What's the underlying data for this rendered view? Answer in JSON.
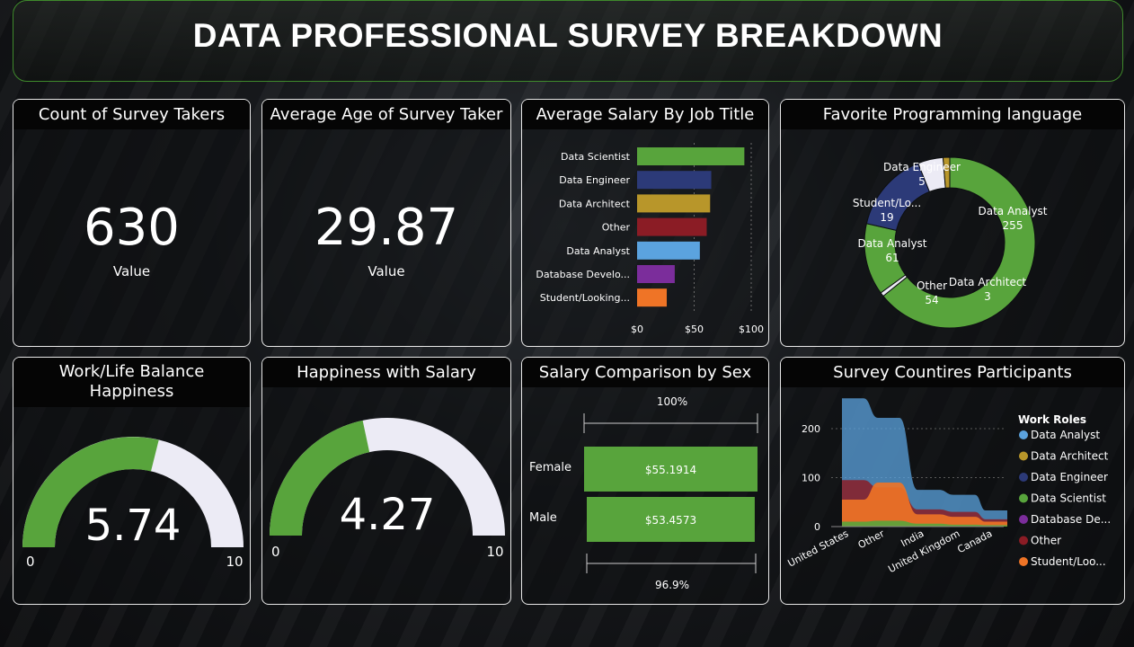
{
  "page_title": "DATA PROFESSIONAL SURVEY BREAKDOWN",
  "colors": {
    "green": "#58a43c",
    "accent_border": "#3f8a2c",
    "gauge_bg": "#ecebf5"
  },
  "kpis": {
    "count": {
      "title": "Count of Survey Takers",
      "value": "630",
      "label": "Value"
    },
    "age": {
      "title": "Average Age of Survey Taker",
      "value": "29.87",
      "label": "Value"
    }
  },
  "gauges": {
    "work_life": {
      "title": "Work/Life Balance Happiness",
      "value_text": "5.74",
      "min_label": "0",
      "max_label": "10"
    },
    "salary_happiness": {
      "title": "Happiness with Salary",
      "value_text": "4.27",
      "min_label": "0",
      "max_label": "10"
    }
  },
  "salary_by_title": {
    "title": "Average Salary By Job Title"
  },
  "languages": {
    "title": "Favorite Programming language"
  },
  "salary_sex": {
    "title": "Salary Comparison by Sex",
    "top_pct": "100%",
    "bottom_pct": "96.9%"
  },
  "countries": {
    "title": "Survey Countires Participants",
    "legend_title": "Work Roles"
  },
  "chart_data": [
    {
      "type": "bar",
      "orientation": "horizontal",
      "title": "Average Salary By Job Title",
      "categories": [
        "Data Scientist",
        "Data Engineer",
        "Data Architect",
        "Other",
        "Data Analyst",
        "Database Develo...",
        "Student/Looking..."
      ],
      "values": [
        94,
        65,
        64,
        61,
        55,
        33,
        26
      ],
      "colors": [
        "#58a43c",
        "#2c3a78",
        "#b8962a",
        "#8b1c25",
        "#5ba3df",
        "#7b2d9b",
        "#ef7426"
      ],
      "xlim": [
        0,
        100
      ],
      "xticks": [
        "$0",
        "$50",
        "$100"
      ],
      "xtick_values": [
        0,
        50,
        100
      ]
    },
    {
      "type": "pie",
      "subtype": "donut",
      "title": "Favorite Programming language",
      "slices": [
        {
          "label": "Data Analyst",
          "value": 255,
          "color": "#58a43c"
        },
        {
          "label": "Data Architect",
          "value": 3,
          "color": "#ecebf5"
        },
        {
          "label": "Other",
          "value": 54,
          "color": "#58a43c"
        },
        {
          "label": "Data Analyst",
          "value": 61,
          "color": "#2c3a78"
        },
        {
          "label": "Student/Lo...",
          "value": 19,
          "color": "#ecebf5"
        },
        {
          "label": "Data Engineer",
          "value": 5,
          "color": "#b8962a"
        }
      ]
    },
    {
      "type": "bar",
      "orientation": "horizontal",
      "title": "Salary Comparison by Sex",
      "categories": [
        "Female",
        "Male"
      ],
      "values": [
        55.1914,
        53.4573
      ],
      "value_labels": [
        "$55.1914",
        "$53.4573"
      ],
      "pct_labels": [
        "100%",
        "96.9%"
      ]
    },
    {
      "type": "area",
      "subtype": "ribbon",
      "title": "Survey Countires Participants",
      "categories": [
        "United States",
        "Other",
        "India",
        "United Kingdom",
        "Canada"
      ],
      "ylim": [
        0,
        260
      ],
      "yticks": [
        0,
        100,
        200
      ],
      "legend_title": "Work Roles",
      "series": [
        {
          "name": "Data Analyst",
          "color": "#5ba3df",
          "values": [
            262,
            222,
            75,
            65,
            33
          ]
        },
        {
          "name": "Data Architect",
          "color": "#b8962a",
          "values": [
            0,
            0,
            0,
            0,
            0
          ]
        },
        {
          "name": "Data Engineer",
          "color": "#2c3a78",
          "values": [
            0,
            0,
            0,
            0,
            0
          ]
        },
        {
          "name": "Data Scientist",
          "color": "#58a43c",
          "values": [
            10,
            12,
            6,
            4,
            3
          ]
        },
        {
          "name": "Database De...",
          "color": "#7b2d9b",
          "values": [
            0,
            0,
            0,
            0,
            0
          ]
        },
        {
          "name": "Other",
          "color": "#8b1c25",
          "values": [
            95,
            80,
            35,
            30,
            15
          ]
        },
        {
          "name": "Student/Loo...",
          "color": "#ef7426",
          "values": [
            55,
            90,
            25,
            20,
            10
          ]
        }
      ]
    }
  ]
}
